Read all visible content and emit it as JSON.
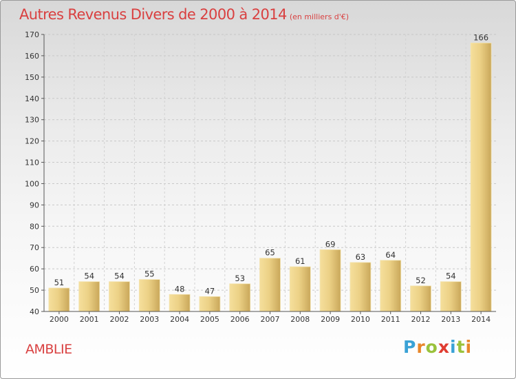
{
  "header": {
    "title": "Autres Revenus Divers de 2000 à 2014",
    "subtitle": "(en milliers d'€)"
  },
  "footer": {
    "commune": "AMBLIE",
    "logo_letters": [
      "P",
      "r",
      "o",
      "x",
      "i",
      "t",
      "i"
    ],
    "logo_colors": [
      "#3aa2d6",
      "#e8862a",
      "#9ac23c",
      "#e03c31",
      "#3aa2d6",
      "#9ac23c",
      "#e8862a"
    ]
  },
  "chart_data": {
    "type": "bar",
    "title": "Autres Revenus Divers de 2000 à 2014",
    "subtitle": "(en milliers d'€)",
    "xlabel": "",
    "ylabel": "",
    "categories": [
      "2000",
      "2001",
      "2002",
      "2003",
      "2004",
      "2005",
      "2006",
      "2007",
      "2008",
      "2009",
      "2010",
      "2011",
      "2012",
      "2013",
      "2014"
    ],
    "values": [
      51,
      54,
      54,
      55,
      48,
      47,
      53,
      65,
      61,
      69,
      63,
      64,
      52,
      54,
      166
    ],
    "ylim": [
      40,
      170
    ],
    "yticks": [
      40,
      50,
      60,
      70,
      80,
      90,
      100,
      110,
      120,
      130,
      140,
      150,
      160,
      170
    ],
    "grid": true,
    "bar_color": "#e6c771"
  }
}
